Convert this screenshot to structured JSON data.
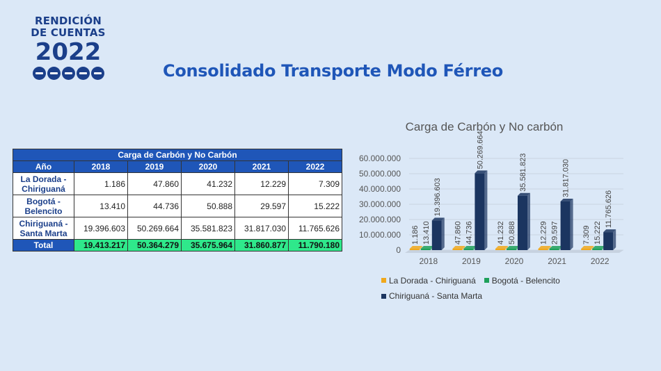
{
  "logo": {
    "line1": "RENDICIÓN",
    "line2": "DE CUENTAS",
    "year": "2022"
  },
  "title": "Consolidado Transporte Modo Férreo",
  "table": {
    "caption": "Carga de Carbón y No Carbón",
    "headers": [
      "Año",
      "2018",
      "2019",
      "2020",
      "2021",
      "2022"
    ],
    "rows": [
      {
        "label": "La Dorada - Chiriguaná",
        "values": [
          "1.186",
          "47.860",
          "41.232",
          "12.229",
          "7.309"
        ]
      },
      {
        "label": "Bogotá - Belencito",
        "values": [
          "13.410",
          "44.736",
          "50.888",
          "29.597",
          "15.222"
        ]
      },
      {
        "label": "Chiriguaná - Santa Marta",
        "values": [
          "19.396.603",
          "50.269.664",
          "35.581.823",
          "31.817.030",
          "11.765.626"
        ]
      }
    ],
    "total": {
      "label": "Total",
      "values": [
        "19.413.217",
        "50.364.279",
        "35.675.964",
        "31.860.877",
        "11.790.180"
      ]
    }
  },
  "chart_data": {
    "type": "bar",
    "title": "Carga de Carbón y No carbón",
    "categories": [
      "2018",
      "2019",
      "2020",
      "2021",
      "2022"
    ],
    "ylim": [
      0,
      60000000
    ],
    "yticks": [
      "0",
      "10.000.000",
      "20.000.000",
      "30.000.000",
      "40.000.000",
      "50.000.000",
      "60.000.000"
    ],
    "grid": true,
    "legend": "bottom",
    "series": [
      {
        "name": "La Dorada - Chiriguaná",
        "color": "#f0a81c",
        "values": [
          1186,
          47860,
          41232,
          12229,
          7309
        ],
        "labels": [
          "1.186",
          "47.860",
          "41.232",
          "12.229",
          "7.309"
        ]
      },
      {
        "name": "Bogotá - Belencito",
        "color": "#1ea05a",
        "values": [
          13410,
          44736,
          50888,
          29597,
          15222
        ],
        "labels": [
          "13.410",
          "44.736",
          "50.888",
          "29.597",
          "15.222"
        ]
      },
      {
        "name": "Chiriguaná - Santa Marta",
        "color": "#1b3560",
        "values": [
          19396603,
          50269664,
          35581823,
          31817030,
          11765626
        ],
        "labels": [
          "19.396.603",
          "50.269.664",
          "35.581.823",
          "31.817.030",
          "11.765.626"
        ]
      }
    ]
  }
}
